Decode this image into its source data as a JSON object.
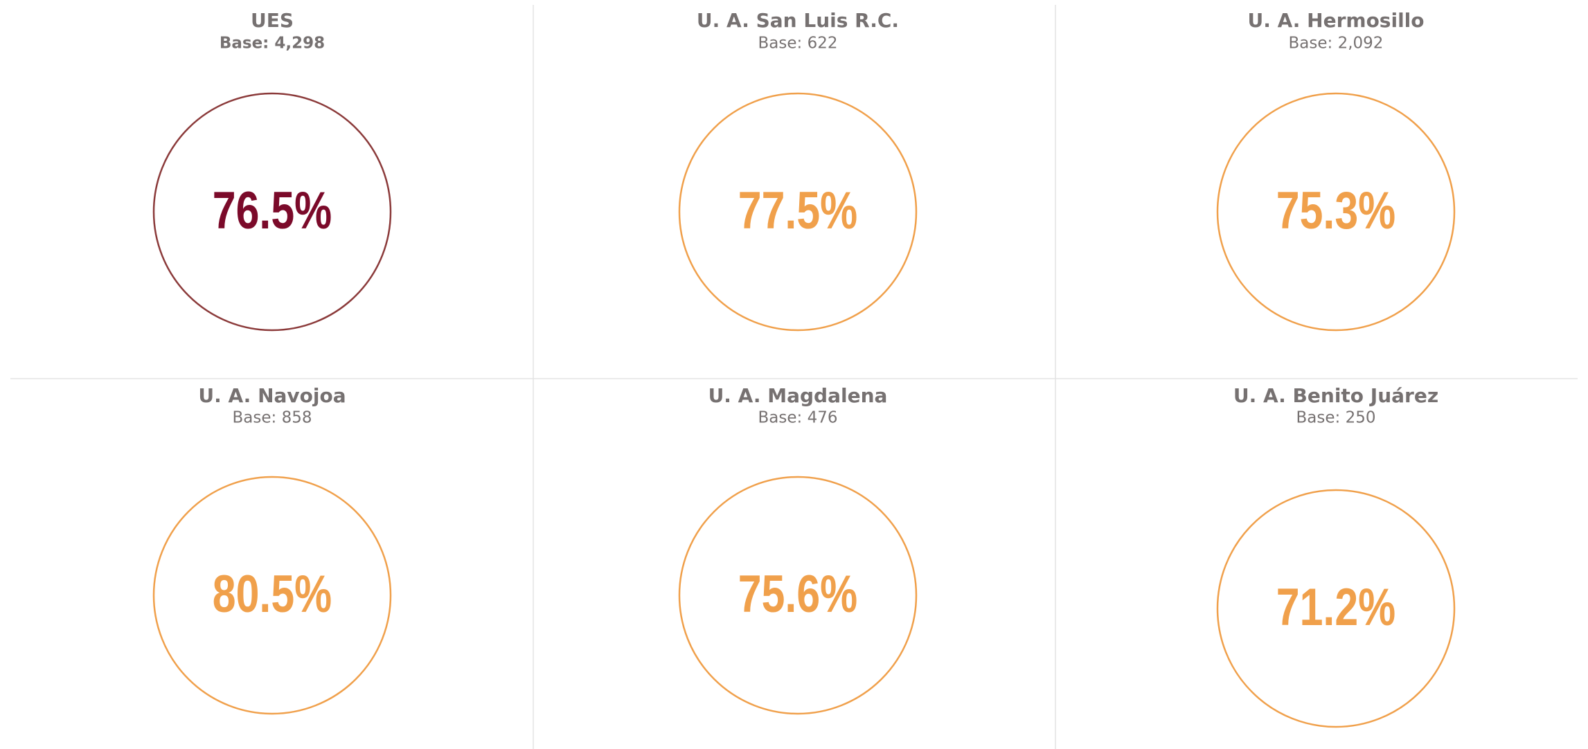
{
  "panels": [
    {
      "title": "UES",
      "base": "Base: 4,298",
      "value": "76.5%",
      "color": "#7b0a2a",
      "ring_color": "#8b3a3a",
      "base_bold": true
    },
    {
      "title": "U. A. San Luis R.C.",
      "base": "Base: 622",
      "value": "77.5%",
      "color": "#f0a04b",
      "ring_color": "#f0a04b",
      "base_bold": false
    },
    {
      "title": "U. A. Hermosillo",
      "base": "Base: 2,092",
      "value": "75.3%",
      "color": "#f0a04b",
      "ring_color": "#f0a04b",
      "base_bold": false
    },
    {
      "title": "U. A. Navojoa",
      "base": "Base: 858",
      "value": "80.5%",
      "color": "#f0a04b",
      "ring_color": "#f0a04b",
      "base_bold": false
    },
    {
      "title": "U. A. Magdalena",
      "base": "Base: 476",
      "value": "75.6%",
      "color": "#f0a04b",
      "ring_color": "#f0a04b",
      "base_bold": false
    },
    {
      "title": "U. A. Benito Juárez",
      "base": "Base: 250",
      "value": "71.2%",
      "color": "#f0a04b",
      "ring_color": "#f0a04b",
      "base_bold": false
    }
  ]
}
